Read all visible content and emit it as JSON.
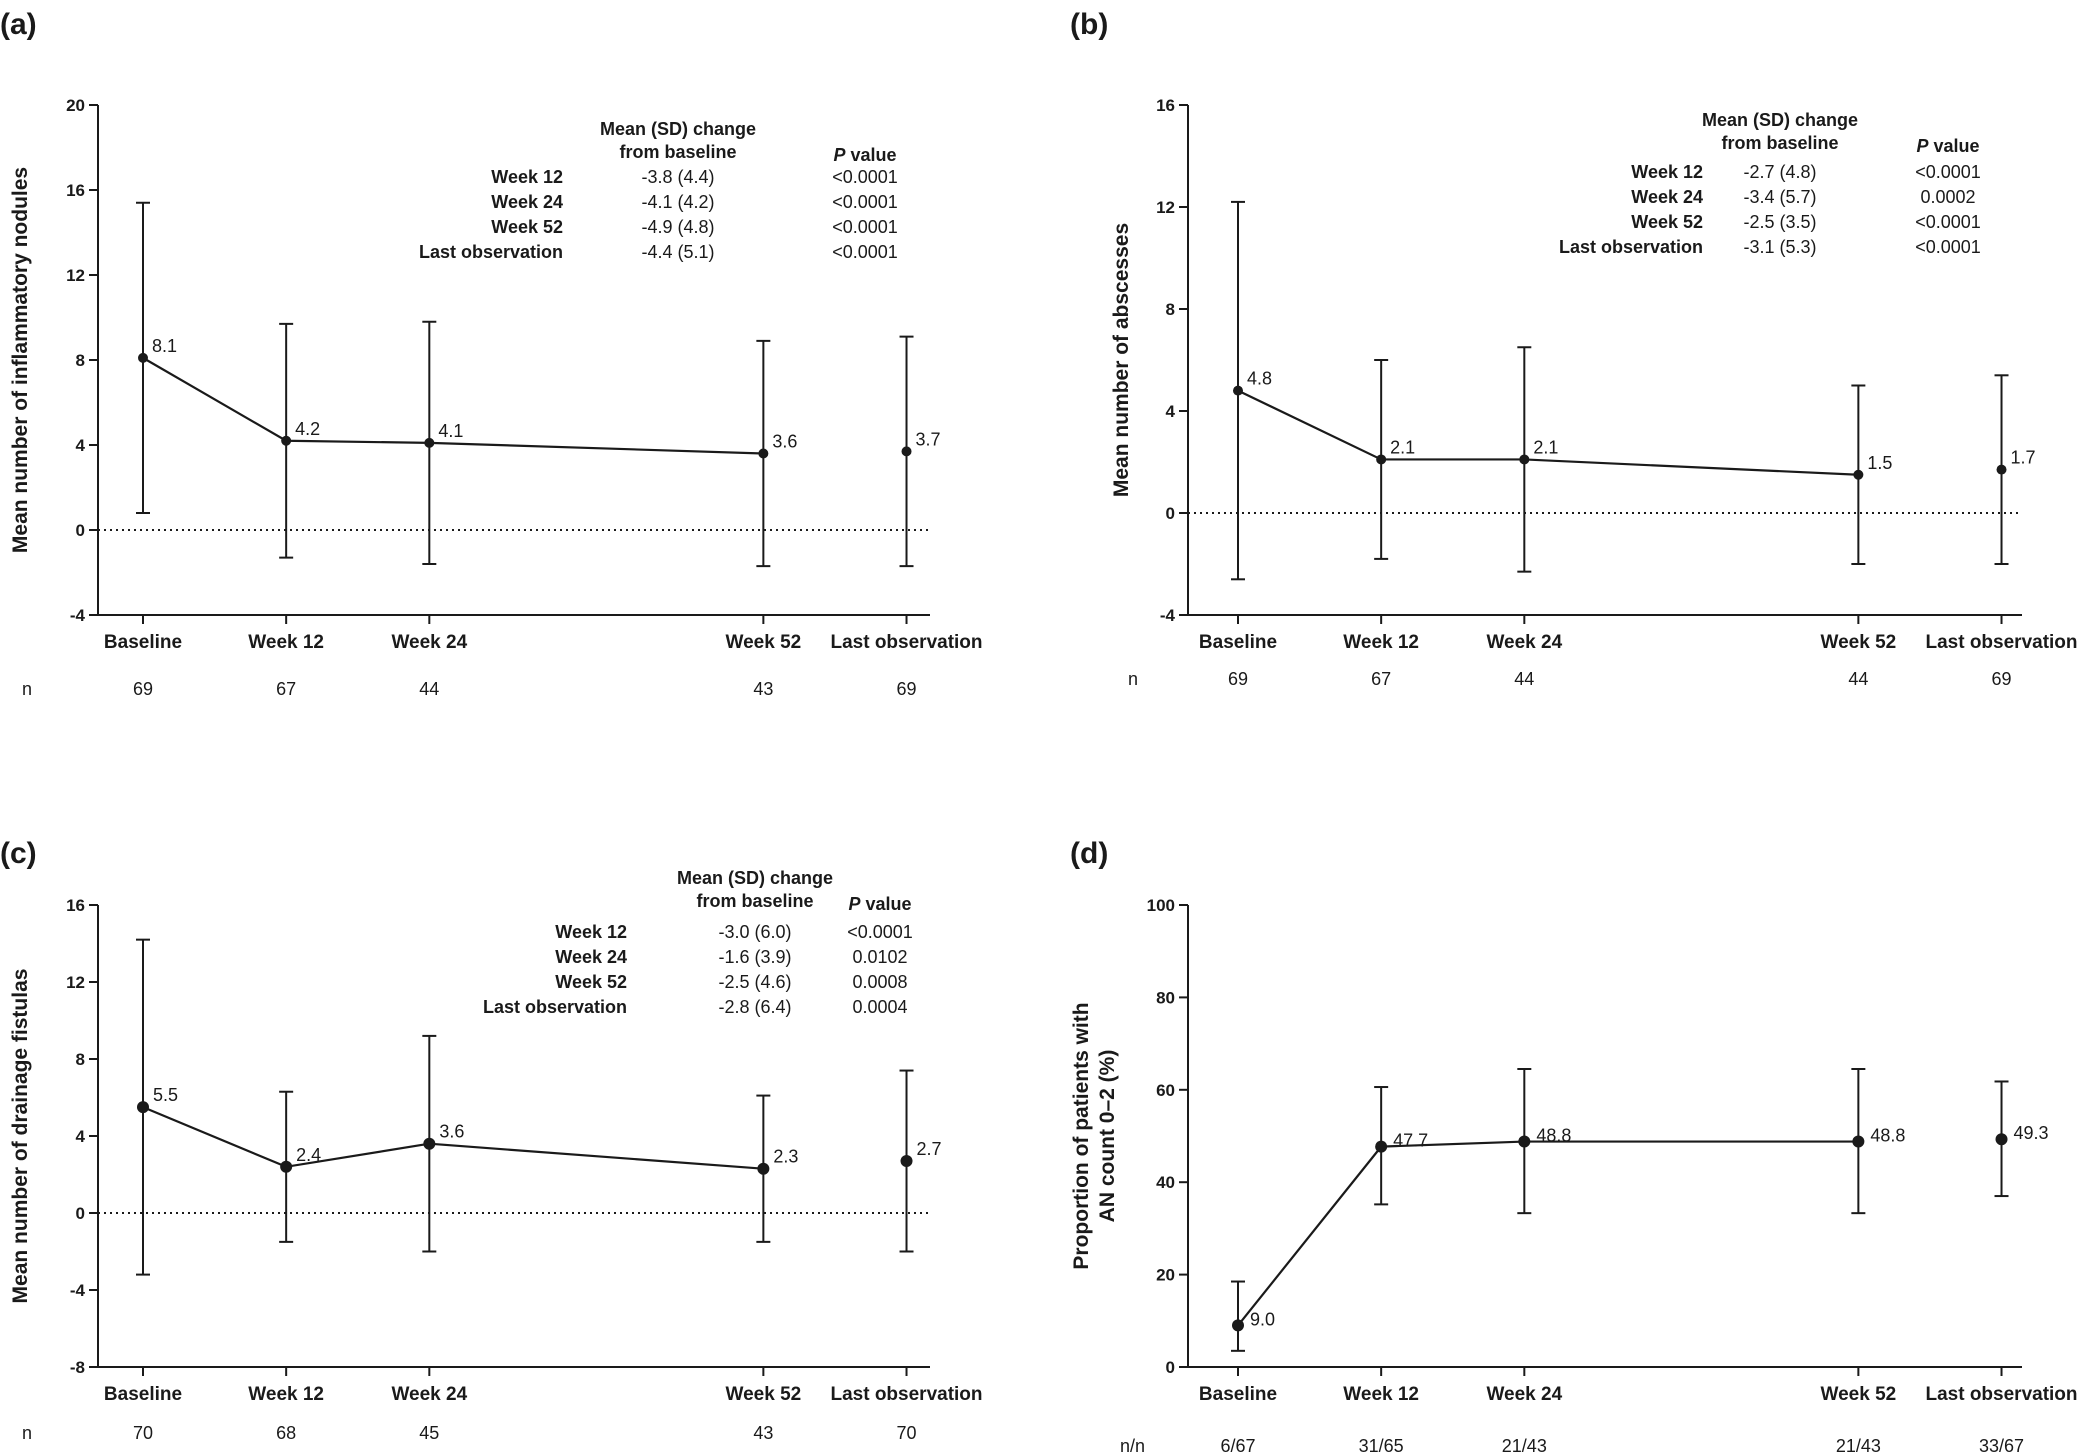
{
  "chart_data": [
    {
      "type": "line",
      "panel": "(a)",
      "ylabel": "Mean number of inflammatory nodules",
      "ylim": [
        -4,
        20
      ],
      "yticks": [
        -4,
        0,
        4,
        8,
        12,
        16,
        20
      ],
      "n_label": "n",
      "categories": [
        "Baseline",
        "Week 12",
        "Week 24",
        "Week 52",
        "Last observation"
      ],
      "x_weeks": [
        0,
        12,
        24,
        52,
        64
      ],
      "connected": [
        true,
        true,
        true,
        true,
        false
      ],
      "values": [
        8.1,
        4.2,
        4.1,
        3.6,
        3.7
      ],
      "labels": [
        "8.1",
        "4.2",
        "4.1",
        "3.6",
        "3.7"
      ],
      "err_low": [
        0.8,
        -1.3,
        -1.6,
        -1.7,
        -1.7
      ],
      "err_high": [
        15.4,
        9.7,
        9.8,
        8.9,
        9.1
      ],
      "n": [
        "69",
        "67",
        "44",
        "43",
        "69"
      ],
      "table": {
        "col1_header": [
          "Mean (SD) change",
          "from baseline"
        ],
        "col2_header_italic": "P",
        "col2_header_rest": " value",
        "rows": [
          {
            "label": "Week 12",
            "change": "-3.8 (4.4)",
            "p": "<0.0001"
          },
          {
            "label": "Week 24",
            "change": "-4.1 (4.2)",
            "p": "<0.0001"
          },
          {
            "label": "Week 52",
            "change": "-4.9 (4.8)",
            "p": "<0.0001"
          },
          {
            "label": "Last observation",
            "change": "-4.4 (5.1)",
            "p": "<0.0001"
          }
        ]
      }
    },
    {
      "type": "line",
      "panel": "(b)",
      "ylabel": "Mean number of abscesses",
      "ylim": [
        -4,
        16
      ],
      "yticks": [
        -4,
        0,
        4,
        8,
        12,
        16
      ],
      "n_label": "n",
      "categories": [
        "Baseline",
        "Week 12",
        "Week 24",
        "Week 52",
        "Last observation"
      ],
      "x_weeks": [
        0,
        12,
        24,
        52,
        64
      ],
      "connected": [
        true,
        true,
        true,
        true,
        false
      ],
      "values": [
        4.8,
        2.1,
        2.1,
        1.5,
        1.7
      ],
      "labels": [
        "4.8",
        "2.1",
        "2.1",
        "1.5",
        "1.7"
      ],
      "err_low": [
        -2.6,
        -1.8,
        -2.3,
        -2.0,
        -2.0
      ],
      "err_high": [
        12.2,
        6.0,
        6.5,
        5.0,
        5.4
      ],
      "n": [
        "69",
        "67",
        "44",
        "44",
        "69"
      ],
      "table": {
        "col1_header": [
          "Mean (SD) change",
          "from baseline"
        ],
        "col2_header_italic": "P",
        "col2_header_rest": " value",
        "rows": [
          {
            "label": "Week 12",
            "change": "-2.7 (4.8)",
            "p": "<0.0001"
          },
          {
            "label": "Week 24",
            "change": "-3.4 (5.7)",
            "p": "0.0002"
          },
          {
            "label": "Week 52",
            "change": "-2.5 (3.5)",
            "p": "<0.0001"
          },
          {
            "label": "Last observation",
            "change": "-3.1 (5.3)",
            "p": "<0.0001"
          }
        ]
      }
    },
    {
      "type": "line",
      "panel": "(c)",
      "ylabel": "Mean number of drainage fistulas",
      "ylim": [
        -8,
        16
      ],
      "yticks": [
        -8,
        -4,
        0,
        4,
        8,
        12,
        16
      ],
      "n_label": "n",
      "categories": [
        "Baseline",
        "Week 12",
        "Week 24",
        "Week 52",
        "Last observation"
      ],
      "x_weeks": [
        0,
        12,
        24,
        52,
        64
      ],
      "connected": [
        true,
        true,
        true,
        true,
        false
      ],
      "values": [
        5.5,
        2.4,
        3.6,
        2.3,
        2.7
      ],
      "labels": [
        "5.5",
        "2.4",
        "3.6",
        "2.3",
        "2.7"
      ],
      "err_low": [
        -3.2,
        -1.5,
        -2.0,
        -1.5,
        -2.0
      ],
      "err_high": [
        14.2,
        6.3,
        9.2,
        6.1,
        7.4
      ],
      "n": [
        "70",
        "68",
        "45",
        "43",
        "70"
      ],
      "table": {
        "col1_header": [
          "Mean (SD) change",
          "from baseline"
        ],
        "col2_header_italic": "P",
        "col2_header_rest": " value",
        "rows": [
          {
            "label": "Week 12",
            "change": "-3.0 (6.0)",
            "p": "<0.0001"
          },
          {
            "label": "Week 24",
            "change": "-1.6 (3.9)",
            "p": "0.0102"
          },
          {
            "label": "Week 52",
            "change": "-2.5 (4.6)",
            "p": "0.0008"
          },
          {
            "label": "Last observation",
            "change": "-2.8 (6.4)",
            "p": "0.0004"
          }
        ]
      }
    },
    {
      "type": "line",
      "panel": "(d)",
      "ylabel_lines": [
        "Proportion of patients with",
        "AN count 0–2 (%)"
      ],
      "ylim": [
        0,
        100
      ],
      "yticks": [
        0,
        20,
        40,
        60,
        80,
        100
      ],
      "n_label": "n/n",
      "categories": [
        "Baseline",
        "Week 12",
        "Week 24",
        "Week 52",
        "Last observation"
      ],
      "x_weeks": [
        0,
        12,
        24,
        52,
        64
      ],
      "connected": [
        true,
        true,
        true,
        true,
        false
      ],
      "values": [
        9.0,
        47.7,
        48.8,
        48.8,
        49.3
      ],
      "labels": [
        "9.0",
        "47.7",
        "48.8",
        "48.8",
        "49.3"
      ],
      "err_low": [
        3.5,
        35.2,
        33.3,
        33.3,
        37.0
      ],
      "err_high": [
        18.5,
        60.6,
        64.5,
        64.5,
        61.8
      ],
      "n": [
        "6/67",
        "31/65",
        "21/43",
        "21/43",
        "33/67"
      ]
    }
  ]
}
